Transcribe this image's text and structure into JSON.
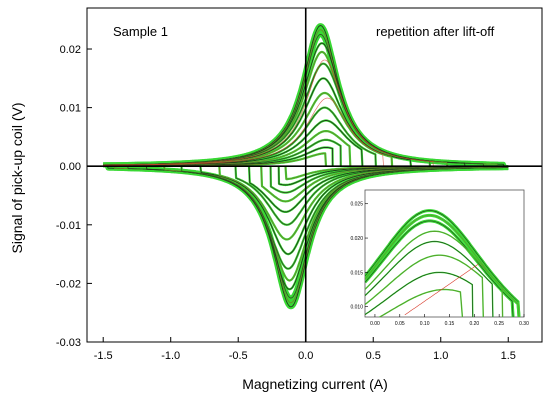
{
  "chart_data": {
    "type": "line",
    "xlabel": "Magnetizing current  (A)",
    "ylabel": "Signal of pick-up coil  (V)",
    "xlim": [
      -1.62,
      1.75
    ],
    "ylim": [
      -0.03,
      0.027
    ],
    "x_ticks": [
      "-1.5",
      "-1.0",
      "-0.5",
      "0.0",
      "0.5",
      "1.0",
      "1.5"
    ],
    "y_ticks": [
      "-0.03",
      "-0.02",
      "-0.01",
      "0.00",
      "0.01",
      "0.02"
    ],
    "annotations": [
      "Sample 1",
      "repetition after lift-off"
    ],
    "colors": {
      "main": "#39d834",
      "dark": "#1f3d1a",
      "mid": "#6a8a2a",
      "red": "#d83a2a"
    },
    "series": [
      {
        "amplitude": 0.024,
        "peak_x": 0.11,
        "width": 0.16,
        "cut_x": 1.47
      },
      {
        "amplitude": 0.0233,
        "peak_x": 0.11,
        "width": 0.16,
        "cut_x": 1.42
      },
      {
        "amplitude": 0.0225,
        "peak_x": 0.11,
        "width": 0.16,
        "cut_x": 1.32
      },
      {
        "amplitude": 0.021,
        "peak_x": 0.12,
        "width": 0.17,
        "cut_x": 1.18
      },
      {
        "amplitude": 0.0195,
        "peak_x": 0.12,
        "width": 0.17,
        "cut_x": 1.05
      },
      {
        "amplitude": 0.0175,
        "peak_x": 0.13,
        "width": 0.18,
        "cut_x": 0.92
      },
      {
        "amplitude": 0.015,
        "peak_x": 0.13,
        "width": 0.18,
        "cut_x": 0.78
      },
      {
        "amplitude": 0.0125,
        "peak_x": 0.14,
        "width": 0.19,
        "cut_x": 0.64
      },
      {
        "amplitude": 0.01,
        "peak_x": 0.14,
        "width": 0.19,
        "cut_x": 0.52
      },
      {
        "amplitude": 0.0078,
        "peak_x": 0.15,
        "width": 0.2,
        "cut_x": 0.42
      },
      {
        "amplitude": 0.006,
        "peak_x": 0.15,
        "width": 0.2,
        "cut_x": 0.33
      },
      {
        "amplitude": 0.0045,
        "peak_x": 0.15,
        "width": 0.2,
        "cut_x": 0.26
      },
      {
        "amplitude": 0.0032,
        "peak_x": 0.15,
        "width": 0.2,
        "cut_x": 0.2
      },
      {
        "amplitude": 0.0022,
        "peak_x": 0.15,
        "width": 0.2,
        "cut_x": 0.15
      }
    ],
    "inset": {
      "xlim": [
        -0.02,
        0.3
      ],
      "ylim": [
        0.0085,
        0.027
      ],
      "x_ticks": [
        "0.00",
        "0.05",
        "0.10",
        "0.15",
        "0.20",
        "0.25",
        "0.30"
      ],
      "y_ticks": [
        "0.010",
        "0.015",
        "0.020",
        "0.025"
      ]
    }
  }
}
